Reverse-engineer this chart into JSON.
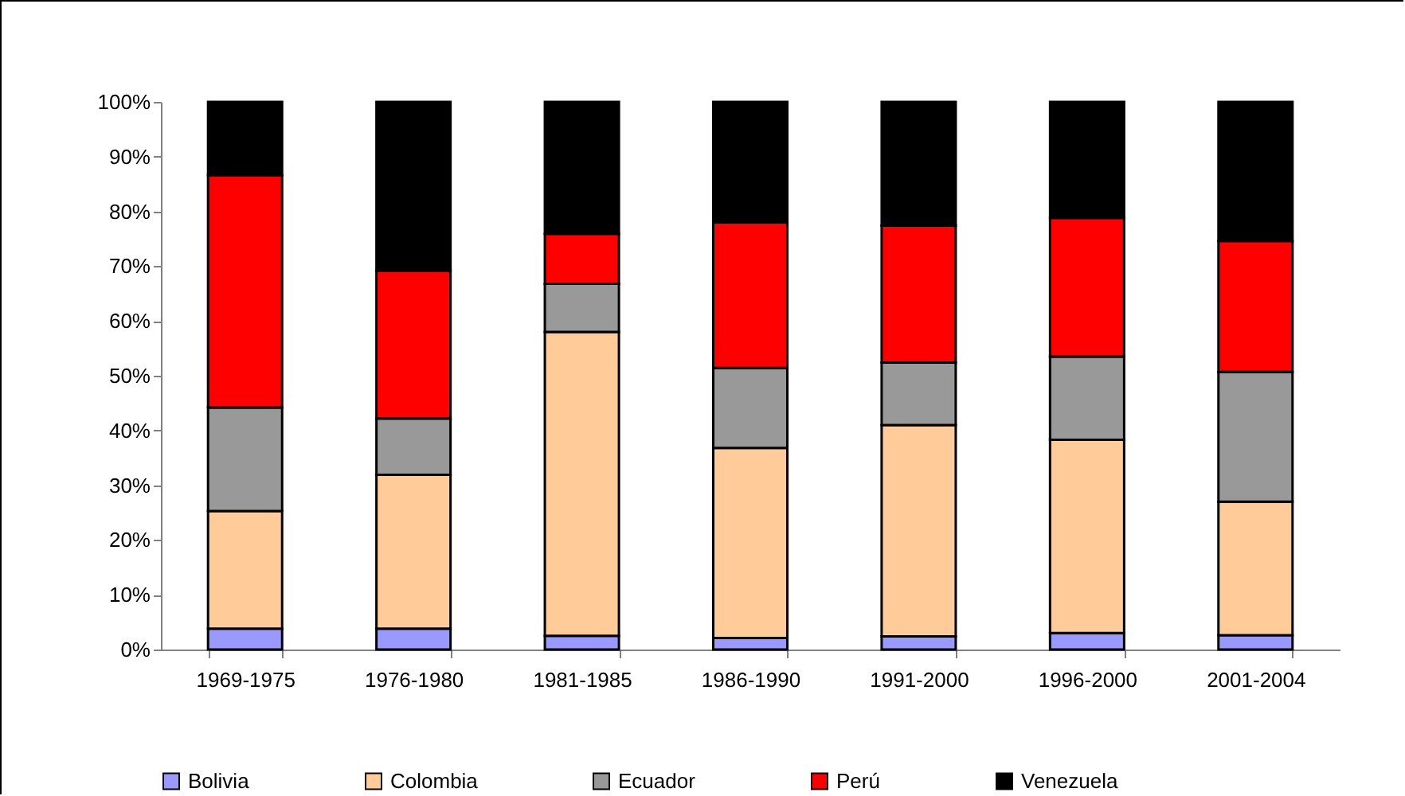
{
  "chart_data": {
    "type": "bar",
    "stacked": true,
    "categories": [
      "1969-1975",
      "1976-1980",
      "1981-1985",
      "1986-1990",
      "1991-2000",
      "1996-2000",
      "2001-2004"
    ],
    "series": [
      {
        "name": "Bolivia",
        "color": "#9999ff",
        "values": [
          3.8,
          3.8,
          2.5,
          2.1,
          2.4,
          3.0,
          2.6
        ]
      },
      {
        "name": "Colombia",
        "color": "#ffcc99",
        "values": [
          21.5,
          28.1,
          55.5,
          34.7,
          38.6,
          35.3,
          24.4
        ]
      },
      {
        "name": "Ecuador",
        "color": "#999999",
        "values": [
          18.9,
          10.3,
          8.8,
          14.6,
          11.4,
          15.2,
          23.7
        ]
      },
      {
        "name": "Perú",
        "color": "#ff0000",
        "values": [
          42.4,
          27.0,
          9.1,
          26.6,
          25.0,
          25.3,
          23.9
        ]
      },
      {
        "name": "Venezuela",
        "color": "#000000",
        "values": [
          13.4,
          30.8,
          24.1,
          22.0,
          22.6,
          21.2,
          25.4
        ]
      }
    ],
    "ylim": [
      0,
      100
    ],
    "yticks": [
      {
        "value": 0,
        "label": "0%"
      },
      {
        "value": 10,
        "label": "10%"
      },
      {
        "value": 20,
        "label": "20%"
      },
      {
        "value": 30,
        "label": "30%"
      },
      {
        "value": 40,
        "label": "40%"
      },
      {
        "value": 50,
        "label": "50%"
      },
      {
        "value": 60,
        "label": "60%"
      },
      {
        "value": 70,
        "label": "70%"
      },
      {
        "value": 80,
        "label": "80%"
      },
      {
        "value": 90,
        "label": "90%"
      },
      {
        "value": 100,
        "label": "100%"
      }
    ],
    "grid": false,
    "legend": "bottom"
  }
}
